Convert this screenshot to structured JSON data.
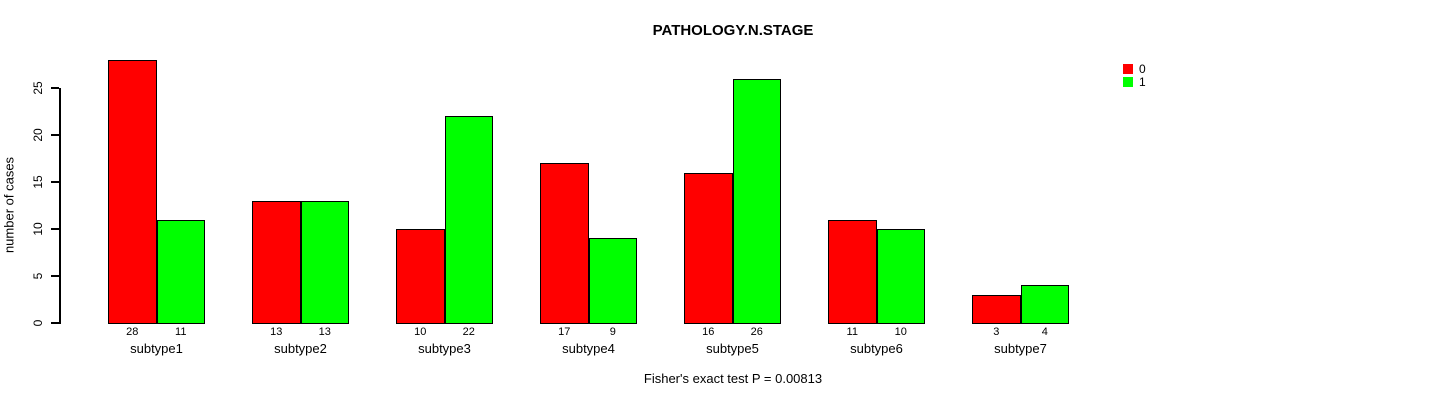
{
  "chart_data": {
    "type": "bar",
    "title": "PATHOLOGY.N.STAGE",
    "ylabel": "number of cases",
    "xlabel": "",
    "annotation": "Fisher's exact test P = 0.00813",
    "categories": [
      "subtype1",
      "subtype2",
      "subtype3",
      "subtype4",
      "subtype5",
      "subtype6",
      "subtype7"
    ],
    "series": [
      {
        "name": "0",
        "color": "#FF0000",
        "values": [
          28,
          13,
          10,
          17,
          16,
          11,
          3
        ]
      },
      {
        "name": "1",
        "color": "#00FF00",
        "values": [
          11,
          13,
          22,
          9,
          26,
          10,
          4
        ]
      }
    ],
    "bar_value_labels": [
      [
        "28",
        "11"
      ],
      [
        "13",
        "13"
      ],
      [
        "10",
        "22"
      ],
      [
        "17",
        "9"
      ],
      [
        "16",
        "26"
      ],
      [
        "11",
        "10"
      ],
      [
        "3",
        "4"
      ]
    ],
    "yticks": [
      0,
      5,
      10,
      15,
      20,
      25
    ],
    "ylim": [
      0,
      28
    ],
    "grid": false,
    "legend_position": "topright",
    "axis_color": "#000000",
    "bar_border_color": "#000000",
    "background_color": "#FFFFFF"
  }
}
